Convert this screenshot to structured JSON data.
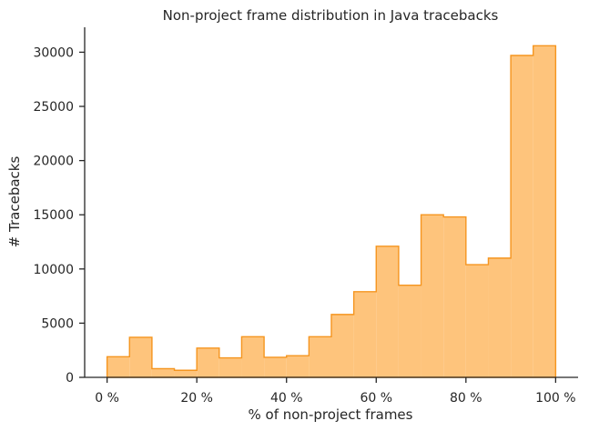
{
  "chart_data": {
    "type": "histogram",
    "title": "Non-project frame distribution in Java tracebacks",
    "xlabel": "% of non-project frames",
    "ylabel": "# Tracebacks",
    "xlim": [
      -5,
      105
    ],
    "ylim": [
      0,
      32300
    ],
    "bin_width": 5,
    "bin_starts": [
      0,
      5,
      10,
      15,
      20,
      25,
      30,
      35,
      40,
      45,
      50,
      55,
      60,
      65,
      70,
      75,
      80,
      85,
      90,
      95
    ],
    "values": [
      1900,
      3700,
      800,
      650,
      2700,
      1800,
      3750,
      1850,
      2000,
      3750,
      5800,
      7900,
      12100,
      8500,
      15000,
      14800,
      10400,
      11000,
      29700,
      30600
    ],
    "x_ticks": [
      0,
      20,
      40,
      60,
      80,
      100
    ],
    "x_tick_labels": [
      "0 %",
      "20 %",
      "40 %",
      "60 %",
      "80 %",
      "100 %"
    ],
    "y_ticks": [
      0,
      5000,
      10000,
      15000,
      20000,
      25000,
      30000
    ],
    "y_tick_labels": [
      "0",
      "5000",
      "10000",
      "15000",
      "20000",
      "25000",
      "30000"
    ],
    "grid": false,
    "colors": {
      "fill": "#fec47c",
      "edge": "#f5951f",
      "axis": "#262626"
    }
  }
}
